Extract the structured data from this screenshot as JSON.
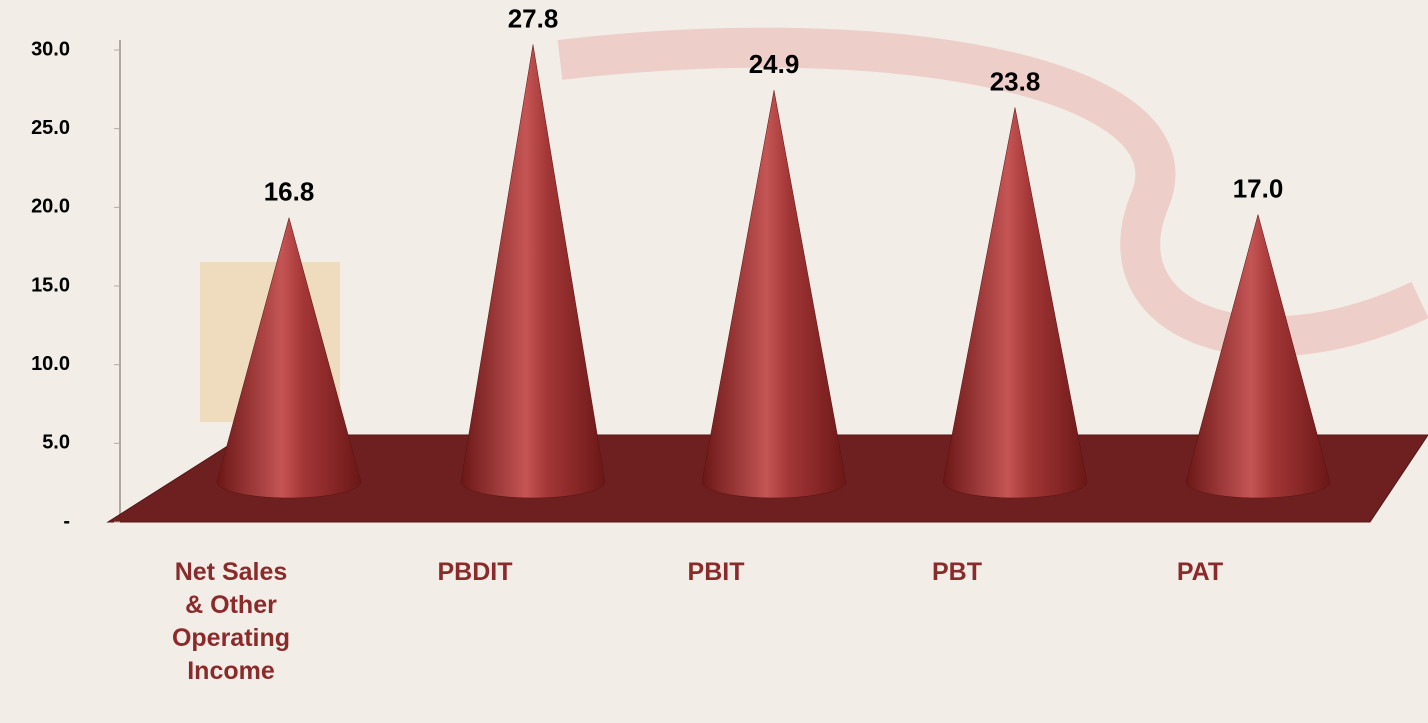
{
  "chart_data": {
    "type": "cone",
    "categories": [
      "Net Sales & Other Operating Income",
      "PBDIT",
      "PBIT",
      "PBT",
      "PAT"
    ],
    "values": [
      16.8,
      27.8,
      24.9,
      23.8,
      17.0
    ],
    "value_labels": [
      "16.8",
      "27.8",
      "24.9",
      "23.8",
      "17.0"
    ],
    "color": "#9b2d2d",
    "ylim": [
      0,
      30
    ],
    "yticks": [
      {
        "value": 0,
        "label": "-"
      },
      {
        "value": 5,
        "label": "5.0"
      },
      {
        "value": 10,
        "label": "10.0"
      },
      {
        "value": 15,
        "label": "15.0"
      },
      {
        "value": 20,
        "label": "20.0"
      },
      {
        "value": 25,
        "label": "25.0"
      },
      {
        "value": 30,
        "label": "30.0"
      }
    ]
  }
}
